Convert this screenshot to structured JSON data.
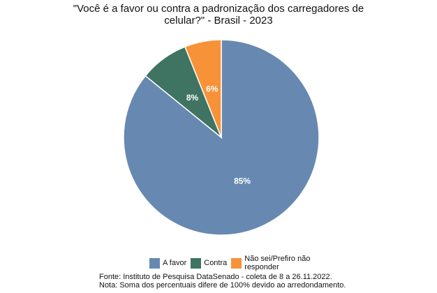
{
  "chart_data": {
    "type": "pie",
    "title": "\"Você é a favor ou contra a padronização dos carregadores de celular?\" - Brasil - 2023",
    "categories": [
      "A favor",
      "Contra",
      "Não sei/Prefiro não responder"
    ],
    "values": [
      85,
      8,
      6
    ],
    "value_labels": [
      "85%",
      "8%",
      "6%"
    ],
    "colors": [
      "#6789b1",
      "#3e7461",
      "#f79239"
    ],
    "source": "Fonte: Instituto de Pesquisa DataSenado - coleta de 8 a 26.11.2022.",
    "note": "Nota: Soma dos percentuais difere de 100% devido ao arredondamento."
  }
}
